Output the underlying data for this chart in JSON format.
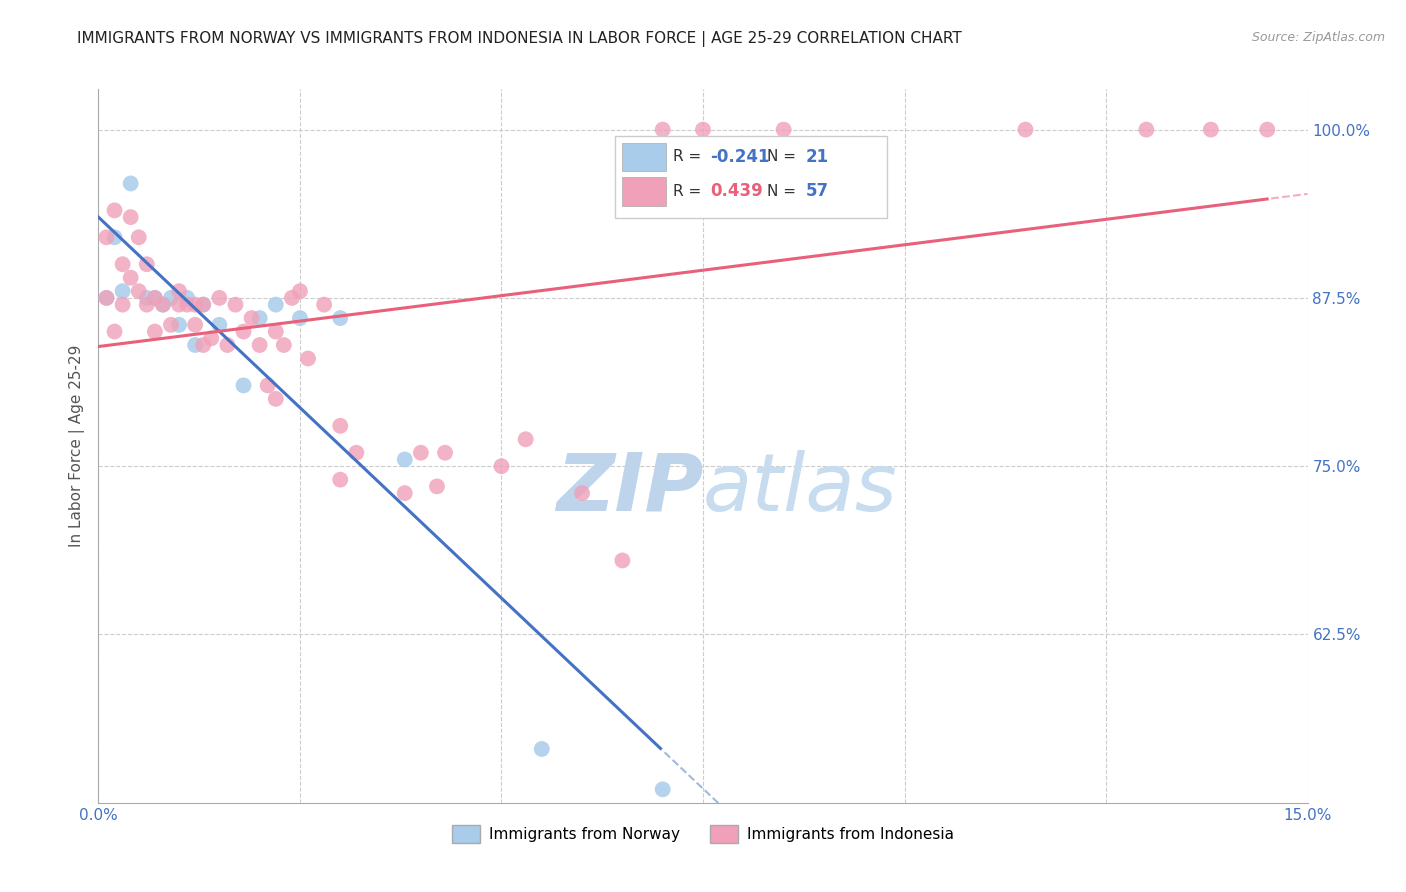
{
  "title": "IMMIGRANTS FROM NORWAY VS IMMIGRANTS FROM INDONESIA IN LABOR FORCE | AGE 25-29 CORRELATION CHART",
  "source": "Source: ZipAtlas.com",
  "ylabel": "In Labor Force | Age 25-29",
  "xlim": [
    0.0,
    0.15
  ],
  "ylim": [
    0.5,
    1.03
  ],
  "xtick_vals": [
    0.0,
    0.025,
    0.05,
    0.075,
    0.1,
    0.125,
    0.15
  ],
  "xticklabels": [
    "0.0%",
    "",
    "",
    "",
    "",
    "",
    "15.0%"
  ],
  "yticks_right": [
    0.625,
    0.75,
    0.875,
    1.0
  ],
  "ytick_labels_right": [
    "62.5%",
    "75.0%",
    "87.5%",
    "100.0%"
  ],
  "norway_R": -0.241,
  "norway_N": 21,
  "indonesia_R": 0.439,
  "indonesia_N": 57,
  "norway_color": "#A8CCEA",
  "indonesia_color": "#F0A0B8",
  "norway_line_color": "#4472C4",
  "indonesia_line_color": "#E8607A",
  "watermark_zip_color": "#C8DCF0",
  "watermark_atlas_color": "#C8DCF0",
  "background_color": "#FFFFFF",
  "norway_x": [
    0.001,
    0.002,
    0.003,
    0.004,
    0.006,
    0.007,
    0.008,
    0.009,
    0.01,
    0.011,
    0.012,
    0.013,
    0.015,
    0.018,
    0.02,
    0.022,
    0.025,
    0.03,
    0.038,
    0.055,
    0.07
  ],
  "norway_y": [
    0.875,
    0.92,
    0.88,
    0.96,
    0.875,
    0.875,
    0.87,
    0.875,
    0.855,
    0.875,
    0.84,
    0.87,
    0.855,
    0.81,
    0.86,
    0.87,
    0.86,
    0.86,
    0.755,
    0.54,
    0.51
  ],
  "indonesia_x": [
    0.001,
    0.001,
    0.002,
    0.002,
    0.003,
    0.003,
    0.004,
    0.004,
    0.005,
    0.005,
    0.006,
    0.006,
    0.007,
    0.007,
    0.008,
    0.009,
    0.01,
    0.01,
    0.011,
    0.012,
    0.012,
    0.013,
    0.013,
    0.014,
    0.015,
    0.016,
    0.017,
    0.018,
    0.019,
    0.02,
    0.021,
    0.022,
    0.022,
    0.023,
    0.024,
    0.025,
    0.026,
    0.028,
    0.03,
    0.03,
    0.032,
    0.038,
    0.04,
    0.042,
    0.043,
    0.05,
    0.053,
    0.06,
    0.065,
    0.07,
    0.075,
    0.08,
    0.085,
    0.115,
    0.13,
    0.138,
    0.145
  ],
  "indonesia_y": [
    0.875,
    0.92,
    0.85,
    0.94,
    0.9,
    0.87,
    0.89,
    0.935,
    0.88,
    0.92,
    0.87,
    0.9,
    0.85,
    0.875,
    0.87,
    0.855,
    0.88,
    0.87,
    0.87,
    0.87,
    0.855,
    0.87,
    0.84,
    0.845,
    0.875,
    0.84,
    0.87,
    0.85,
    0.86,
    0.84,
    0.81,
    0.85,
    0.8,
    0.84,
    0.875,
    0.88,
    0.83,
    0.87,
    0.78,
    0.74,
    0.76,
    0.73,
    0.76,
    0.735,
    0.76,
    0.75,
    0.77,
    0.73,
    0.68,
    1.0,
    1.0,
    0.98,
    1.0,
    1.0,
    1.0,
    1.0,
    1.0
  ]
}
